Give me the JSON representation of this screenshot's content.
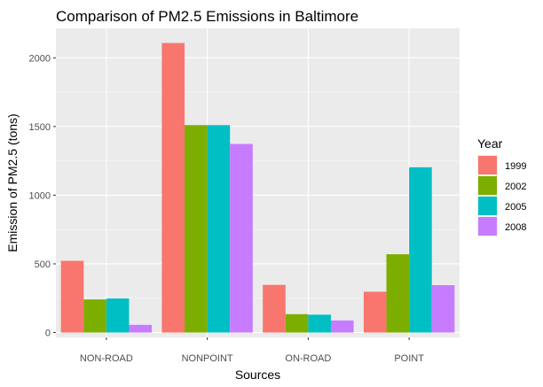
{
  "chart_data": {
    "type": "bar",
    "title": "Comparison of PM2.5 Emissions in Baltimore",
    "xlabel": "Sources",
    "ylabel": "Emission of PM2.5 (tons)",
    "categories": [
      "NON-ROAD",
      "NONPOINT",
      "ON-ROAD",
      "POINT"
    ],
    "ylim": [
      0,
      2210
    ],
    "yticks": [
      0,
      500,
      1000,
      1500,
      2000
    ],
    "grid": true,
    "legend": {
      "title": "Year",
      "position": "right"
    },
    "series": [
      {
        "name": "1999",
        "color": "#F8766D",
        "values": [
          522,
          2108,
          347,
          297
        ]
      },
      {
        "name": "2002",
        "color": "#7CAE00",
        "values": [
          241,
          1510,
          134,
          570
        ]
      },
      {
        "name": "2005",
        "color": "#00BFC4",
        "values": [
          248,
          1510,
          130,
          1203
        ]
      },
      {
        "name": "2008",
        "color": "#C77CFF",
        "values": [
          56,
          1373,
          88,
          345
        ]
      }
    ]
  }
}
